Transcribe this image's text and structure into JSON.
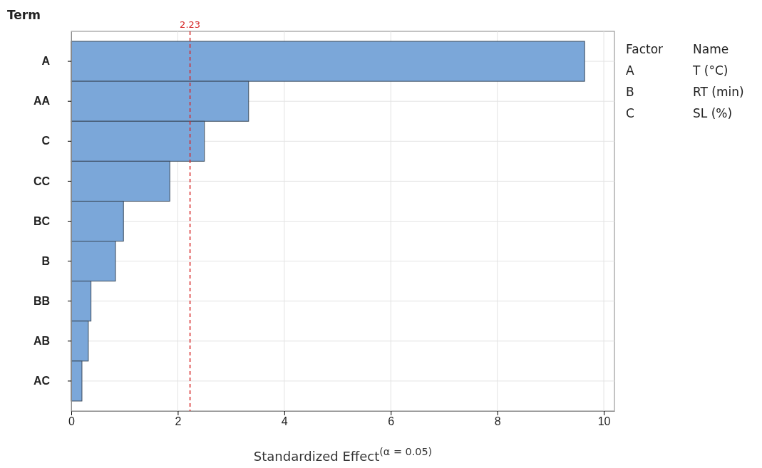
{
  "chart_data": {
    "type": "bar",
    "orientation": "horizontal",
    "ylabel": "Term",
    "xlabel": "Standardized Effect$^{(α = 0.05)}$",
    "categories": [
      "A",
      "AA",
      "C",
      "CC",
      "BC",
      "B",
      "BB",
      "AB",
      "AC"
    ],
    "values": [
      9.64,
      3.33,
      2.5,
      1.85,
      0.98,
      0.83,
      0.37,
      0.32,
      0.2
    ],
    "color": "#7ba7d9",
    "xlim": [
      0,
      10.2
    ],
    "xticks": [
      0,
      2,
      4,
      6,
      8,
      10
    ],
    "grid": true,
    "ref_lines": [
      {
        "axis": "x",
        "value": 2.23,
        "label": "2.23",
        "color": "#d62728",
        "line_style": "dashed"
      }
    ],
    "annotations": [
      "Factor",
      "Name",
      "A",
      "T (°C)",
      "B",
      "RT (min)",
      "C",
      "SL (%)"
    ]
  }
}
